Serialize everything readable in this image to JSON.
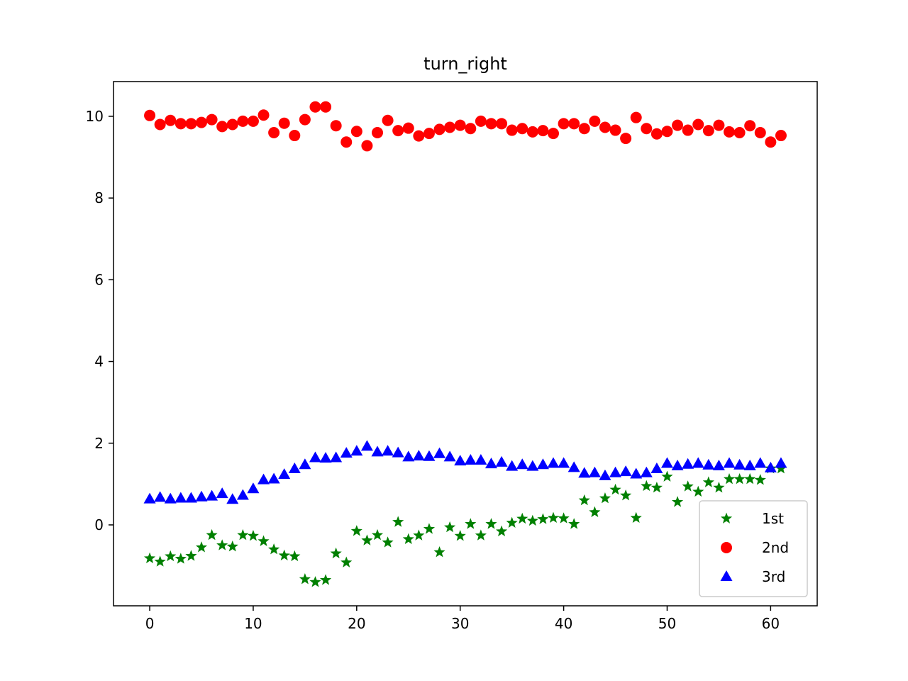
{
  "chart_data": {
    "type": "scatter",
    "title": "turn_right",
    "xlabel": "",
    "ylabel": "",
    "xlim": [
      -3.5,
      64.5
    ],
    "ylim": [
      -1.98,
      10.85
    ],
    "xticks": [
      0,
      10,
      20,
      30,
      40,
      50,
      60
    ],
    "yticks": [
      0,
      2,
      4,
      6,
      8,
      10
    ],
    "grid": false,
    "legend_position": "lower-right",
    "x": [
      0,
      1,
      2,
      3,
      4,
      5,
      6,
      7,
      8,
      9,
      10,
      11,
      12,
      13,
      14,
      15,
      16,
      17,
      18,
      19,
      20,
      21,
      22,
      23,
      24,
      25,
      26,
      27,
      28,
      29,
      30,
      31,
      32,
      33,
      34,
      35,
      36,
      37,
      38,
      39,
      40,
      41,
      42,
      43,
      44,
      45,
      46,
      47,
      48,
      49,
      50,
      51,
      52,
      53,
      54,
      55,
      56,
      57,
      58,
      59,
      60,
      61
    ],
    "series": [
      {
        "name": "1st",
        "color": "#008000",
        "marker": "star",
        "values": [
          -0.82,
          -0.9,
          -0.77,
          -0.83,
          -0.76,
          -0.55,
          -0.25,
          -0.5,
          -0.53,
          -0.25,
          -0.27,
          -0.4,
          -0.6,
          -0.75,
          -0.77,
          -1.33,
          -1.4,
          -1.35,
          -0.7,
          -0.92,
          -0.15,
          -0.38,
          -0.25,
          -0.43,
          0.07,
          -0.35,
          -0.26,
          -0.1,
          -0.67,
          -0.06,
          -0.27,
          0.02,
          -0.26,
          0.02,
          -0.16,
          0.05,
          0.15,
          0.1,
          0.14,
          0.17,
          0.16,
          0.02,
          0.6,
          0.31,
          0.65,
          0.86,
          0.72,
          0.17,
          0.95,
          0.91,
          1.18,
          0.56,
          0.94,
          0.81,
          1.04,
          0.91,
          1.12,
          1.12,
          1.12,
          1.1,
          1.38,
          1.38
        ]
      },
      {
        "name": "2nd",
        "color": "#ff0000",
        "marker": "circle",
        "values": [
          10.02,
          9.8,
          9.9,
          9.82,
          9.82,
          9.85,
          9.92,
          9.75,
          9.8,
          9.88,
          9.88,
          10.03,
          9.6,
          9.83,
          9.53,
          9.92,
          10.23,
          10.23,
          9.77,
          9.37,
          9.63,
          9.28,
          9.6,
          9.9,
          9.65,
          9.71,
          9.52,
          9.58,
          9.68,
          9.73,
          9.78,
          9.7,
          9.88,
          9.82,
          9.82,
          9.66,
          9.7,
          9.62,
          9.65,
          9.58,
          9.82,
          9.82,
          9.7,
          9.88,
          9.73,
          9.66,
          9.46,
          9.97,
          9.7,
          9.57,
          9.63,
          9.78,
          9.66,
          9.8,
          9.65,
          9.78,
          9.62,
          9.6,
          9.77,
          9.6,
          9.37,
          9.53
        ]
      },
      {
        "name": "3rd",
        "color": "#0000ff",
        "marker": "triangle",
        "values": [
          0.63,
          0.67,
          0.63,
          0.65,
          0.65,
          0.68,
          0.7,
          0.76,
          0.62,
          0.72,
          0.88,
          1.1,
          1.12,
          1.23,
          1.37,
          1.47,
          1.64,
          1.63,
          1.64,
          1.75,
          1.8,
          1.92,
          1.78,
          1.8,
          1.76,
          1.66,
          1.68,
          1.67,
          1.74,
          1.66,
          1.56,
          1.58,
          1.58,
          1.49,
          1.53,
          1.43,
          1.47,
          1.43,
          1.47,
          1.5,
          1.5,
          1.4,
          1.26,
          1.27,
          1.2,
          1.27,
          1.3,
          1.24,
          1.27,
          1.37,
          1.5,
          1.44,
          1.48,
          1.5,
          1.46,
          1.44,
          1.5,
          1.46,
          1.44,
          1.5,
          1.39,
          1.5
        ]
      }
    ]
  }
}
